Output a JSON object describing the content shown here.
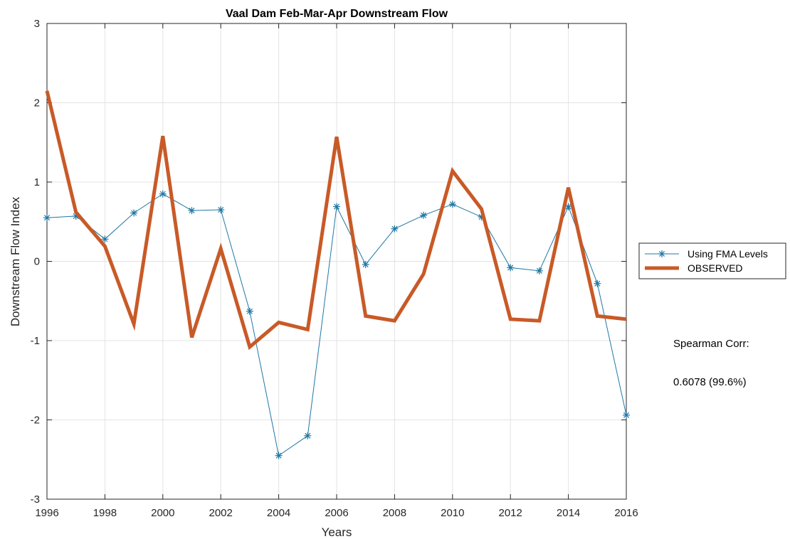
{
  "chart_data": {
    "type": "line",
    "title": "Vaal Dam Feb-Mar-Apr Downstream Flow",
    "xlabel": "Years",
    "ylabel": "Downstream Flow Index",
    "xlim": [
      1996,
      2016
    ],
    "ylim": [
      -3,
      3
    ],
    "x_ticks": [
      1996,
      1998,
      2000,
      2002,
      2004,
      2006,
      2008,
      2010,
      2012,
      2014,
      2016
    ],
    "y_ticks": [
      -3,
      -2,
      -1,
      0,
      1,
      2,
      3
    ],
    "grid": true,
    "legend_position": "outside-right",
    "x": [
      1996,
      1997,
      1998,
      1999,
      2000,
      2001,
      2002,
      2003,
      2004,
      2005,
      2006,
      2007,
      2008,
      2009,
      2010,
      2011,
      2012,
      2013,
      2014,
      2015,
      2016
    ],
    "series": [
      {
        "name": "Using FMA Levels",
        "color": "#1f77a4",
        "marker": "asterisk",
        "values": [
          0.55,
          0.57,
          0.28,
          0.61,
          0.85,
          0.64,
          0.65,
          -0.63,
          -2.45,
          -2.2,
          0.69,
          -0.04,
          0.41,
          0.58,
          0.72,
          0.56,
          -0.08,
          -0.12,
          0.69,
          -0.28,
          -1.94
        ]
      },
      {
        "name": "OBSERVED",
        "color": "#c85a27",
        "marker": "none",
        "values": [
          2.15,
          0.62,
          0.19,
          -0.79,
          1.58,
          -0.96,
          0.16,
          -1.08,
          -0.77,
          -0.86,
          1.57,
          -0.69,
          -0.75,
          -0.16,
          1.14,
          0.66,
          -0.73,
          -0.75,
          0.93,
          -0.69,
          -0.73
        ]
      }
    ],
    "annotation": {
      "label": "Spearman Corr:",
      "value": "0.6078 (99.6%)"
    }
  }
}
